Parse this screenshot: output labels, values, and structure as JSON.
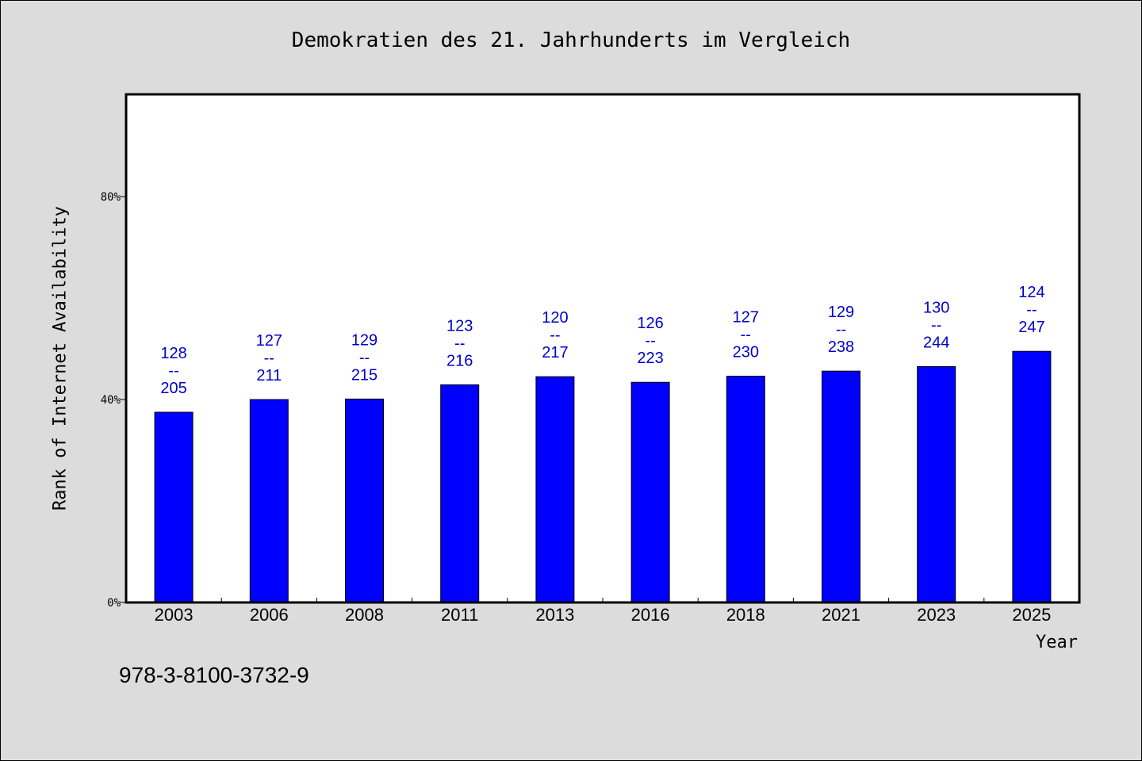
{
  "chart_data": {
    "type": "bar",
    "title": "Demokratien des 21. Jahrhunderts im Vergleich",
    "xlabel": "Year",
    "ylabel": "Rank of Internet Availability",
    "categories": [
      "2003",
      "2006",
      "2008",
      "2011",
      "2013",
      "2016",
      "2018",
      "2021",
      "2023",
      "2025"
    ],
    "series": [
      {
        "values": [
          37.5,
          40.0,
          40.1,
          42.9,
          44.5,
          43.4,
          44.6,
          45.6,
          46.5,
          49.5
        ],
        "rank_labels": [
          "128",
          "127",
          "129",
          "123",
          "120",
          "126",
          "127",
          "129",
          "130",
          "124"
        ],
        "total_labels": [
          "205",
          "211",
          "215",
          "216",
          "217",
          "223",
          "230",
          "238",
          "244",
          "247"
        ],
        "separator": "--"
      }
    ],
    "ylim": [
      0,
      100
    ],
    "yticks": [
      0,
      40,
      80
    ],
    "ytick_labels": [
      "0%",
      "40%",
      "80%"
    ],
    "bar_color": "#0000ff",
    "label_color": "#0000cc",
    "grid": false,
    "legend": "none"
  },
  "footer": {
    "isbn": "978-3-8100-3732-9"
  }
}
